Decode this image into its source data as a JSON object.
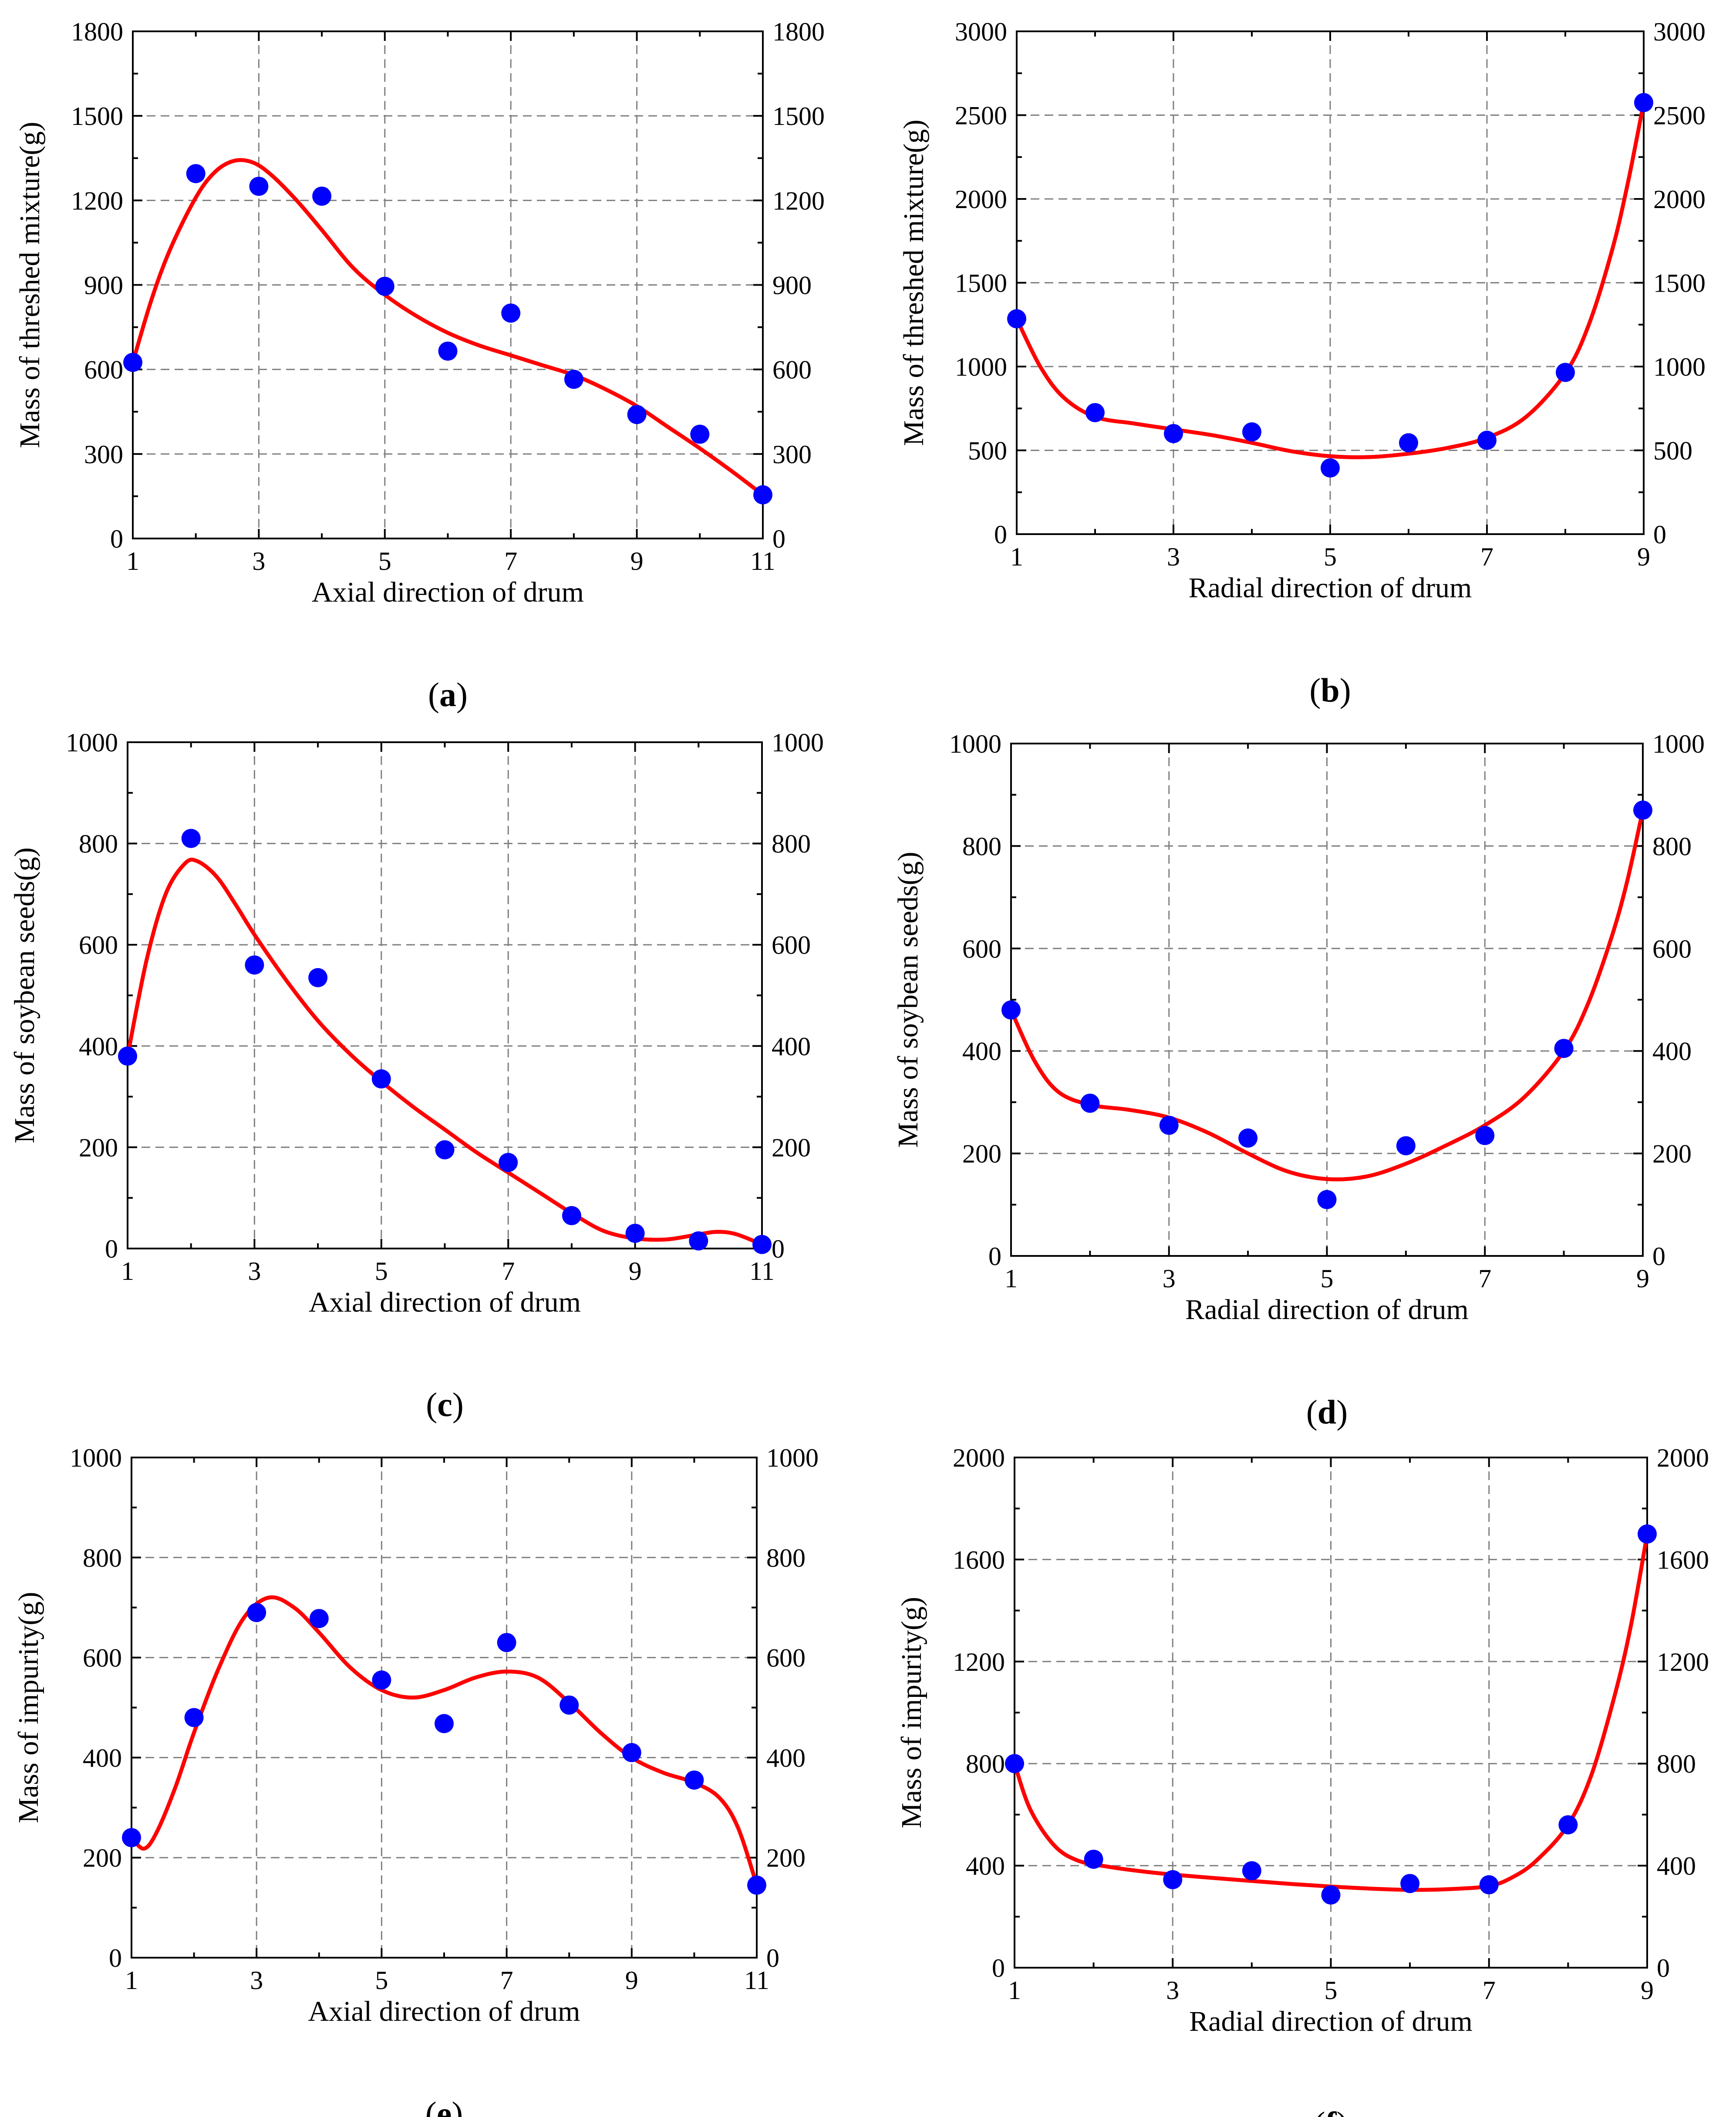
{
  "figure": {
    "point_color": "#0000ff",
    "fit_color": "#ff0000",
    "grid_color": "#808080"
  },
  "chart_data": [
    {
      "id": "a",
      "type": "scatter",
      "panel_prefix": "(",
      "panel_letter": "a",
      "panel_suffix": ")",
      "xlabel": "Axial direction of drum",
      "ylabel": "Mass of threshed mixture(g)",
      "xlim": [
        1,
        11
      ],
      "ylim": [
        0,
        1800
      ],
      "xticks": [
        1,
        3,
        5,
        7,
        9,
        11
      ],
      "yticks": [
        0,
        300,
        600,
        900,
        1200,
        1500,
        1800
      ],
      "right_axis_ticks": true,
      "points": {
        "x": [
          1,
          2,
          3,
          4,
          5,
          6,
          7,
          8,
          9,
          10,
          11
        ],
        "y": [
          625,
          1295,
          1250,
          1215,
          895,
          665,
          800,
          565,
          440,
          370,
          155
        ]
      },
      "fit": {
        "x": [
          1,
          1.3,
          1.6,
          2,
          2.3,
          2.6,
          2.9,
          3.2,
          3.6,
          4,
          4.5,
          5,
          5.5,
          6,
          6.5,
          7,
          7.5,
          8,
          8.5,
          9,
          9.5,
          10,
          10.5,
          11
        ],
        "y": [
          625,
          850,
          1030,
          1210,
          1300,
          1340,
          1335,
          1290,
          1200,
          1095,
          960,
          865,
          790,
          730,
          685,
          650,
          615,
          580,
          530,
          470,
          395,
          320,
          240,
          155
        ]
      }
    },
    {
      "id": "b",
      "type": "scatter",
      "panel_prefix": "(",
      "panel_letter": "b",
      "panel_suffix": ")",
      "xlabel": "Radial direction of drum",
      "ylabel": "Mass of threshed mixture(g)",
      "xlim": [
        1,
        9
      ],
      "ylim": [
        0,
        3000
      ],
      "xticks": [
        1,
        3,
        5,
        7,
        9
      ],
      "yticks": [
        0,
        500,
        1000,
        1500,
        2000,
        2500,
        3000
      ],
      "right_axis_ticks": true,
      "points": {
        "x": [
          1,
          2,
          3,
          4,
          5,
          6,
          7,
          8,
          9
        ],
        "y": [
          1285,
          725,
          600,
          610,
          395,
          545,
          560,
          965,
          2575
        ]
      },
      "fit": {
        "x": [
          1,
          1.3,
          1.6,
          2,
          2.5,
          3,
          3.5,
          4,
          4.5,
          5,
          5.5,
          6,
          6.5,
          7,
          7.5,
          8,
          8.3,
          8.6,
          8.8,
          9
        ],
        "y": [
          1285,
          1000,
          815,
          700,
          660,
          625,
          590,
          545,
          495,
          465,
          460,
          480,
          515,
          575,
          700,
          960,
          1250,
          1700,
          2100,
          2575
        ]
      }
    },
    {
      "id": "c",
      "type": "scatter",
      "panel_prefix": "(",
      "panel_letter": "c",
      "panel_suffix": ")",
      "xlabel": "Axial direction of drum",
      "ylabel": "Mass of soybean seeds(g)",
      "xlim": [
        1,
        11
      ],
      "ylim": [
        0,
        1000
      ],
      "xticks": [
        1,
        3,
        5,
        7,
        9,
        11
      ],
      "yticks": [
        0,
        200,
        400,
        600,
        800,
        1000
      ],
      "right_axis_ticks": true,
      "points": {
        "x": [
          1,
          2,
          3,
          4,
          5,
          6,
          7,
          8,
          9,
          10,
          11
        ],
        "y": [
          380,
          810,
          560,
          535,
          335,
          195,
          170,
          65,
          30,
          15,
          8
        ]
      },
      "fit": {
        "x": [
          1,
          1.3,
          1.6,
          1.9,
          2.1,
          2.4,
          2.7,
          3,
          3.5,
          4,
          4.5,
          5,
          5.5,
          6,
          6.5,
          7,
          7.5,
          8,
          8.5,
          9,
          9.5,
          10,
          10.3,
          10.6,
          11
        ],
        "y": [
          380,
          570,
          700,
          760,
          765,
          735,
          680,
          620,
          530,
          450,
          385,
          330,
          280,
          235,
          190,
          150,
          110,
          70,
          35,
          20,
          18,
          28,
          33,
          28,
          8
        ]
      }
    },
    {
      "id": "d",
      "type": "scatter",
      "panel_prefix": "(",
      "panel_letter": "d",
      "panel_suffix": ")",
      "xlabel": "Radial direction of drum",
      "ylabel": "Mass of soybean seeds(g)",
      "xlim": [
        1,
        9
      ],
      "ylim": [
        0,
        1000
      ],
      "xticks": [
        1,
        3,
        5,
        7,
        9
      ],
      "yticks": [
        0,
        200,
        400,
        600,
        800,
        1000
      ],
      "right_axis_ticks": true,
      "points": {
        "x": [
          1,
          2,
          3,
          4,
          5,
          6,
          7,
          8,
          9
        ],
        "y": [
          480,
          298,
          255,
          230,
          110,
          215,
          235,
          405,
          870
        ]
      },
      "fit": {
        "x": [
          1,
          1.3,
          1.6,
          2,
          2.5,
          3,
          3.5,
          4,
          4.5,
          5,
          5.5,
          6,
          6.5,
          7,
          7.5,
          8,
          8.3,
          8.6,
          8.8,
          9
        ],
        "y": [
          480,
          380,
          320,
          295,
          285,
          270,
          240,
          200,
          165,
          150,
          155,
          180,
          215,
          255,
          310,
          400,
          490,
          620,
          730,
          870
        ]
      }
    },
    {
      "id": "e",
      "type": "scatter",
      "panel_prefix": "(",
      "panel_letter": "e",
      "panel_suffix": ")",
      "xlabel": "Axial direction of drum",
      "ylabel": "Mass of impurity(g)",
      "xlim": [
        1,
        11
      ],
      "ylim": [
        0,
        1000
      ],
      "xticks": [
        1,
        3,
        5,
        7,
        9,
        11
      ],
      "yticks": [
        0,
        200,
        400,
        600,
        800,
        1000
      ],
      "right_axis_ticks": true,
      "points": {
        "x": [
          1,
          2,
          3,
          4,
          5,
          6,
          7,
          8,
          9,
          10,
          11
        ],
        "y": [
          240,
          480,
          690,
          678,
          555,
          468,
          630,
          505,
          410,
          355,
          145
        ]
      },
      "fit": {
        "x": [
          1,
          1.2,
          1.4,
          1.7,
          2,
          2.4,
          2.8,
          3.2,
          3.6,
          4,
          4.5,
          5,
          5.5,
          6,
          6.5,
          7,
          7.5,
          8,
          8.5,
          9,
          9.5,
          10,
          10.4,
          10.7,
          11
        ],
        "y": [
          240,
          218,
          250,
          340,
          450,
          580,
          680,
          720,
          700,
          650,
          580,
          535,
          520,
          535,
          560,
          572,
          560,
          510,
          450,
          400,
          370,
          350,
          320,
          260,
          145
        ]
      }
    },
    {
      "id": "f",
      "type": "scatter",
      "panel_prefix": "(",
      "panel_letter": "f",
      "panel_suffix": ")",
      "xlabel": "Radial direction of drum",
      "ylabel": "Mass of impurity(g)",
      "xlim": [
        1,
        9
      ],
      "ylim": [
        0,
        2000
      ],
      "xticks": [
        1,
        3,
        5,
        7,
        9
      ],
      "yticks": [
        0,
        400,
        800,
        1200,
        1600,
        2000
      ],
      "right_axis_ticks": true,
      "points": {
        "x": [
          1,
          2,
          3,
          4,
          5,
          6,
          7,
          8,
          9
        ],
        "y": [
          800,
          425,
          345,
          380,
          285,
          330,
          325,
          560,
          1700
        ]
      },
      "fit": {
        "x": [
          1,
          1.2,
          1.5,
          1.8,
          2.2,
          2.6,
          3,
          3.5,
          4,
          4.5,
          5,
          5.5,
          6,
          6.5,
          7,
          7.3,
          7.6,
          8,
          8.3,
          8.6,
          8.8,
          9
        ],
        "y": [
          800,
          620,
          480,
          420,
          395,
          378,
          365,
          352,
          340,
          328,
          318,
          310,
          305,
          308,
          320,
          355,
          420,
          560,
          760,
          1080,
          1350,
          1700
        ]
      }
    }
  ]
}
